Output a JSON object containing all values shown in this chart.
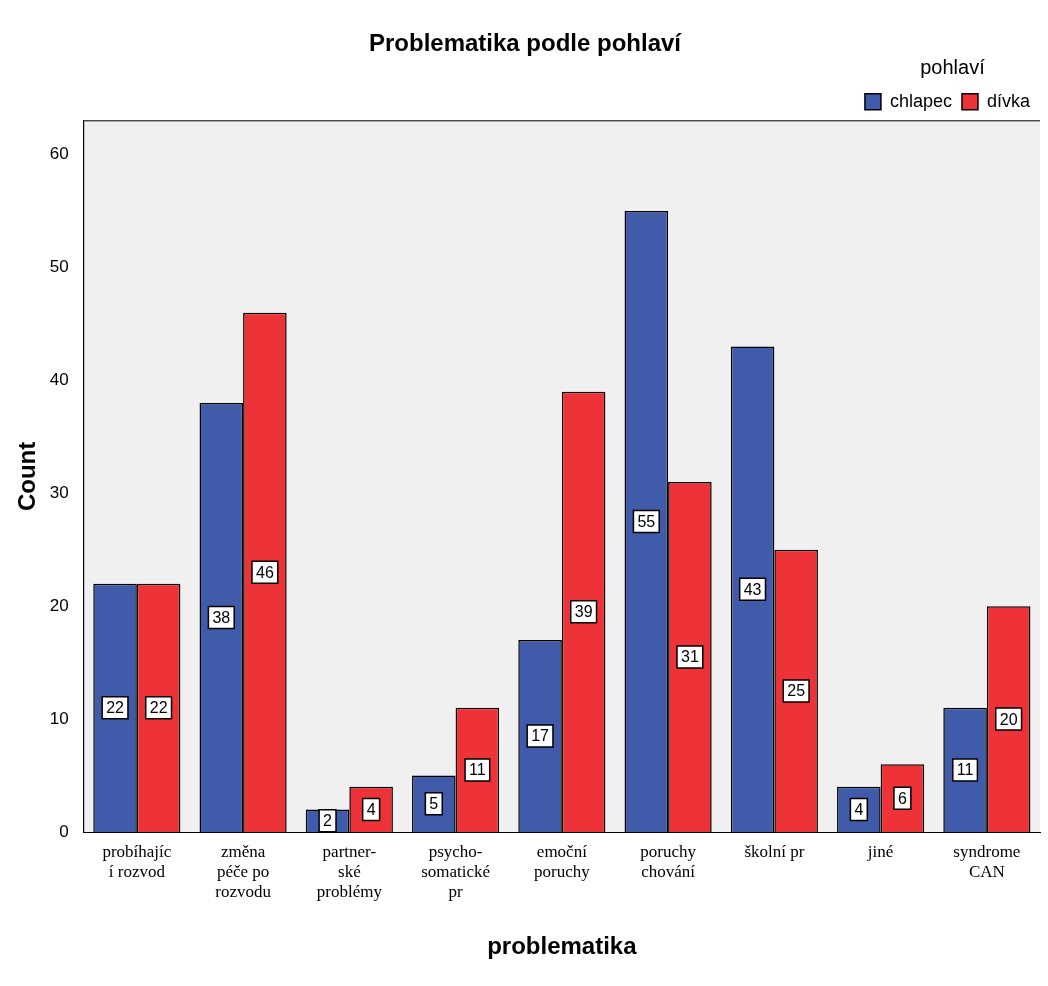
{
  "chart_data": {
    "type": "bar",
    "title": "Problematika podle pohlaví",
    "xlabel": "problematika",
    "ylabel": "Count",
    "legend_title": "pohlaví",
    "legend": "top right",
    "categories": [
      "probíhajíc\ní rozvod",
      "změna\npéče po\nrozvodu",
      "partner-\nské\nproblémy",
      "psycho-\nsomatické\npr",
      "emoční\nporuchy",
      "poruchy\nchování",
      "školní pr",
      "jiné",
      "syndrome\nCAN"
    ],
    "series": [
      {
        "name": "chlapec",
        "color": "#3f5ba9",
        "values": [
          22,
          38,
          2,
          5,
          17,
          55,
          43,
          4,
          11
        ]
      },
      {
        "name": "dívka",
        "color": "#ee3338",
        "values": [
          22,
          46,
          4,
          11,
          39,
          31,
          25,
          6,
          20
        ]
      }
    ],
    "ylim": [
      0,
      63
    ],
    "yticks": [
      0,
      10,
      20,
      30,
      40,
      50,
      60
    ],
    "grid": false,
    "data_labels": true
  }
}
